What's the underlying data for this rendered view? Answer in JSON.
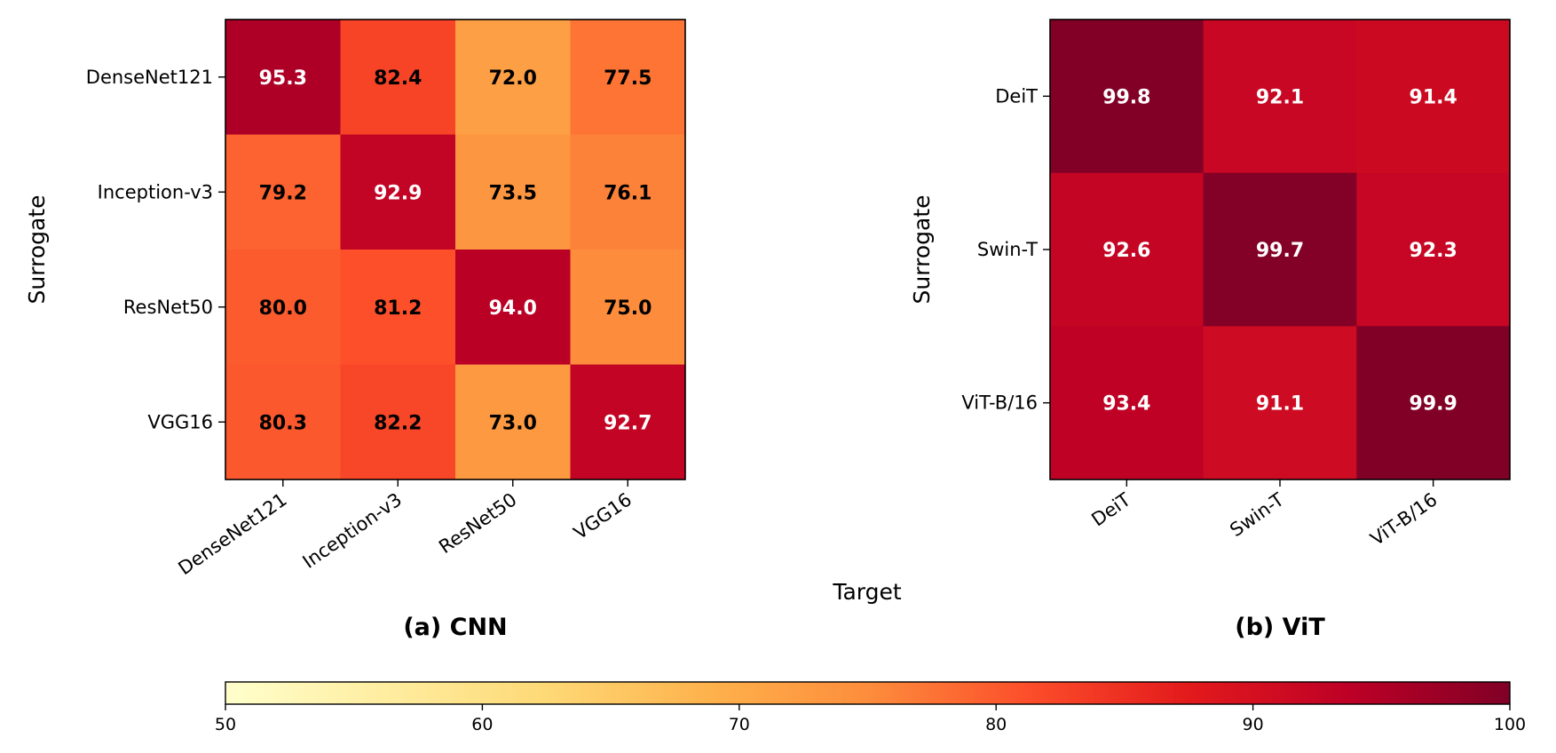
{
  "chart_data": [
    {
      "type": "heatmap",
      "title": "(a) CNN",
      "xlabel": "Target",
      "ylabel": "Surrogate",
      "x_categories": [
        "DenseNet121",
        "Inception-v3",
        "ResNet50",
        "VGG16"
      ],
      "y_categories": [
        "DenseNet121",
        "Inception-v3",
        "ResNet50",
        "VGG16"
      ],
      "values": [
        [
          95.3,
          82.4,
          72.0,
          77.5
        ],
        [
          79.2,
          92.9,
          73.5,
          76.1
        ],
        [
          80.0,
          81.2,
          94.0,
          75.0
        ],
        [
          80.3,
          82.2,
          73.0,
          92.7
        ]
      ],
      "value_labels": [
        [
          "95.3",
          "82.4",
          "72.0",
          "77.5"
        ],
        [
          "79.2",
          "92.9",
          "73.5",
          "76.1"
        ],
        [
          "80.0",
          "81.2",
          "94.0",
          "75.0"
        ],
        [
          "80.3",
          "82.2",
          "73.0",
          "92.7"
        ]
      ]
    },
    {
      "type": "heatmap",
      "title": "(b) ViT",
      "xlabel": "Target",
      "ylabel": "Surrogate",
      "x_categories": [
        "DeiT",
        "Swin-T",
        "ViT-B/16"
      ],
      "y_categories": [
        "DeiT",
        "Swin-T",
        "ViT-B/16"
      ],
      "values": [
        [
          99.8,
          92.1,
          91.4
        ],
        [
          92.6,
          99.7,
          92.3
        ],
        [
          93.4,
          91.1,
          99.9
        ]
      ],
      "value_labels": [
        [
          "99.8",
          "92.1",
          "91.4"
        ],
        [
          "92.6",
          "99.7",
          "92.3"
        ],
        [
          "93.4",
          "91.1",
          "99.9"
        ]
      ]
    }
  ],
  "shared_xlabel": "Target",
  "colorbar": {
    "colormap": "YlOrRd",
    "range": [
      50,
      100
    ],
    "ticks": [
      50,
      60,
      70,
      80,
      90,
      100
    ],
    "tick_labels": [
      "50",
      "60",
      "70",
      "80",
      "90",
      "100"
    ],
    "orientation": "horizontal"
  }
}
